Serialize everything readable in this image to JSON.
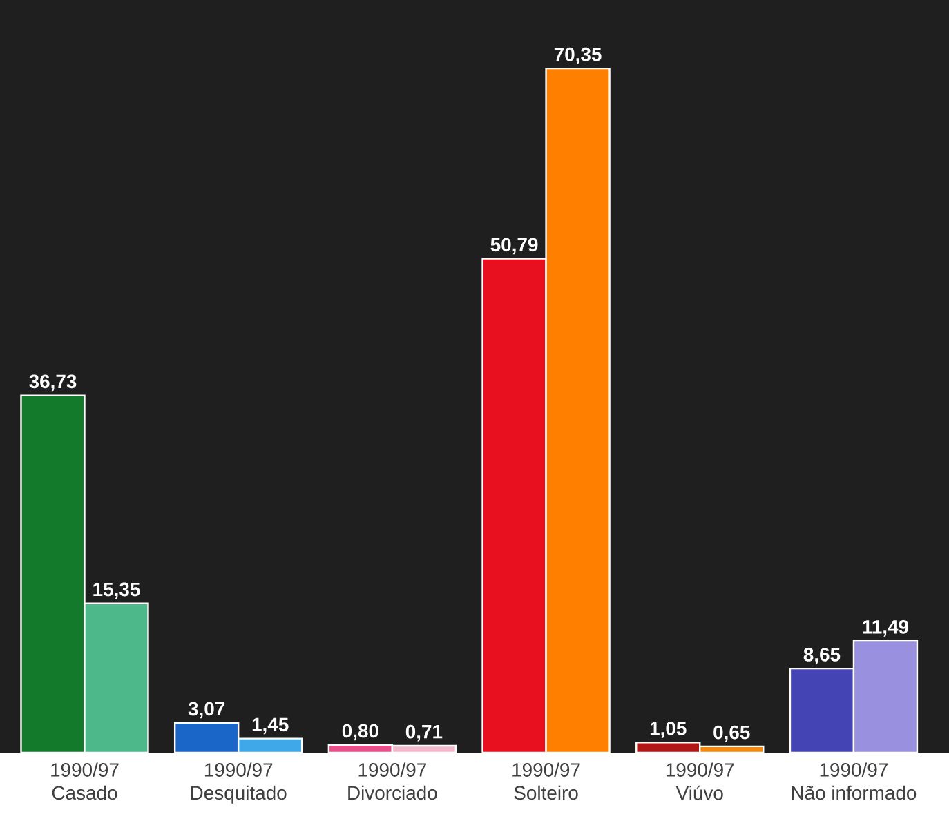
{
  "chart_data": {
    "type": "bar",
    "categories": [
      "Casado",
      "Desquitado",
      "Divorciado",
      "Solteiro",
      "Viúvo",
      "Não informado"
    ],
    "series": [
      {
        "colors": [
          "#137a2c",
          "#1a66c8",
          "#e8508a",
          "#e8101e",
          "#b01818",
          "#4444b4"
        ],
        "values": [
          36.73,
          3.07,
          0.8,
          50.79,
          1.05,
          8.65
        ],
        "value_labels": [
          "36,73",
          "3,07",
          "0,80",
          "50,79",
          "1,05",
          "8,65"
        ]
      },
      {
        "colors": [
          "#4db88a",
          "#3fa8e8",
          "#f4b8cc",
          "#ff8000",
          "#f08a10",
          "#9a90e0"
        ],
        "values": [
          15.35,
          1.45,
          0.71,
          70.35,
          0.65,
          11.49
        ],
        "value_labels": [
          "15,35",
          "1,45",
          "0,71",
          "70,35",
          "0,65",
          "11,49"
        ]
      }
    ],
    "annotations": [
      "1990/97",
      "1990/97",
      "1990/97",
      "1990/97",
      "1990/97",
      "1990/97"
    ]
  }
}
